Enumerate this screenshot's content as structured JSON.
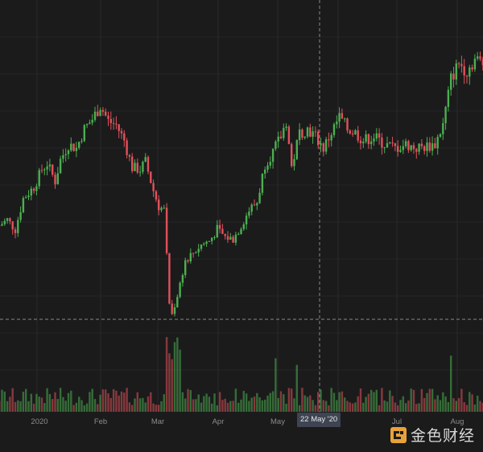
{
  "colors": {
    "up": "#4caf50",
    "down": "#e0525a",
    "background": "#1b1b1c",
    "axis_text": "#8c8c8c",
    "crosshair": "#8a8a8a"
  },
  "crosshair": {
    "date_label": "22 May '20"
  },
  "watermark": {
    "text": "金色财经"
  },
  "chart_data": {
    "type": "candlestick",
    "xaxis_labels": [
      "2020",
      "Feb",
      "Mar",
      "Apr",
      "May",
      "Jul",
      "Aug"
    ],
    "grid": true,
    "volume_panel": true,
    "path": [
      {
        "t": 0,
        "v": 7200
      },
      {
        "t": 3,
        "v": 7350
      },
      {
        "t": 6,
        "v": 7100
      },
      {
        "t": 9,
        "v": 7900
      },
      {
        "t": 13,
        "v": 8200
      },
      {
        "t": 16,
        "v": 8650
      },
      {
        "t": 18,
        "v": 8800
      },
      {
        "t": 21,
        "v": 8350
      },
      {
        "t": 23,
        "v": 8900
      },
      {
        "t": 26,
        "v": 9300
      },
      {
        "t": 29,
        "v": 9200
      },
      {
        "t": 32,
        "v": 9700
      },
      {
        "t": 35,
        "v": 9950
      },
      {
        "t": 38,
        "v": 10300
      },
      {
        "t": 41,
        "v": 9900
      },
      {
        "t": 44,
        "v": 9800
      },
      {
        "t": 47,
        "v": 9400
      },
      {
        "t": 50,
        "v": 8700
      },
      {
        "t": 53,
        "v": 8650
      },
      {
        "t": 55,
        "v": 8850
      },
      {
        "t": 58,
        "v": 8100
      },
      {
        "t": 60,
        "v": 7700
      },
      {
        "t": 62,
        "v": 7600
      },
      {
        "t": 64,
        "v": 5200
      },
      {
        "t": 65,
        "v": 4900
      },
      {
        "t": 67,
        "v": 5400
      },
      {
        "t": 70,
        "v": 6300
      },
      {
        "t": 73,
        "v": 6500
      },
      {
        "t": 76,
        "v": 6700
      },
      {
        "t": 79,
        "v": 6800
      },
      {
        "t": 82,
        "v": 7100
      },
      {
        "t": 85,
        "v": 6900
      },
      {
        "t": 88,
        "v": 6850
      },
      {
        "t": 91,
        "v": 7200
      },
      {
        "t": 94,
        "v": 7600
      },
      {
        "t": 97,
        "v": 7800
      },
      {
        "t": 100,
        "v": 8800
      },
      {
        "t": 103,
        "v": 9100
      },
      {
        "t": 106,
        "v": 9500
      },
      {
        "t": 108,
        "v": 9900
      },
      {
        "t": 110,
        "v": 8700
      },
      {
        "t": 113,
        "v": 9600
      },
      {
        "t": 116,
        "v": 9700
      },
      {
        "t": 119,
        "v": 9500
      },
      {
        "t": 122,
        "v": 9200
      },
      {
        "t": 125,
        "v": 9600
      },
      {
        "t": 128,
        "v": 10000
      },
      {
        "t": 131,
        "v": 9700
      },
      {
        "t": 134,
        "v": 9600
      },
      {
        "t": 137,
        "v": 9400
      },
      {
        "t": 141,
        "v": 9500
      },
      {
        "t": 145,
        "v": 9300
      },
      {
        "t": 149,
        "v": 9200
      },
      {
        "t": 153,
        "v": 9300
      },
      {
        "t": 157,
        "v": 9200
      },
      {
        "t": 161,
        "v": 9250
      },
      {
        "t": 164,
        "v": 9300
      },
      {
        "t": 167,
        "v": 9800
      },
      {
        "t": 170,
        "v": 11000
      },
      {
        "t": 173,
        "v": 11400
      },
      {
        "t": 176,
        "v": 11200
      },
      {
        "t": 179,
        "v": 11500
      },
      {
        "t": 182,
        "v": 11400
      },
      {
        "t": 184,
        "v": 11700
      }
    ]
  }
}
